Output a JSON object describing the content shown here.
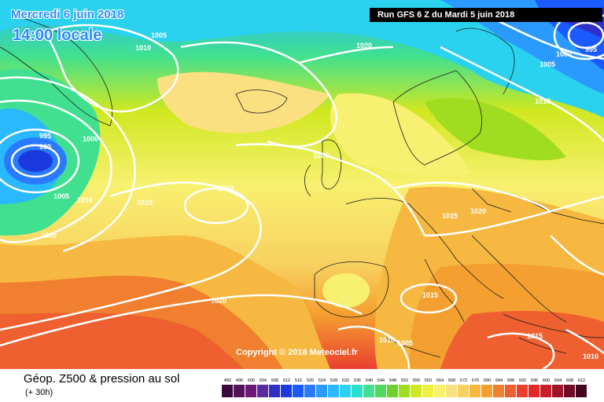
{
  "header": {
    "date": "Mercredi 6 juin 2018",
    "time": "14:00 locale",
    "run": "Run GFS 6 Z du Mardi 5 juin 2018"
  },
  "copyright": "Copyright © 2018 Meteociel.fr",
  "legend": {
    "title": "Géop. Z500 & pression au sol",
    "subtitle": "(+ 30h)",
    "scale_values": [
      "492",
      "496",
      "500",
      "504",
      "508",
      "512",
      "516",
      "520",
      "524",
      "528",
      "532",
      "536",
      "540",
      "544",
      "548",
      "552",
      "556",
      "560",
      "564",
      "568",
      "572",
      "576",
      "580",
      "584",
      "588",
      "592",
      "596",
      "600",
      "604",
      "608",
      "612"
    ],
    "scale_colors": [
      "#3a0a3e",
      "#55125a",
      "#6c1a78",
      "#5a2aa0",
      "#3030c8",
      "#1a3ae0",
      "#1a5aff",
      "#2a7aff",
      "#2a9aff",
      "#2ab8ff",
      "#2ad2f0",
      "#2ae0c8",
      "#40e090",
      "#50d860",
      "#70d030",
      "#a0dc20",
      "#d0e820",
      "#eef040",
      "#f8f070",
      "#fae080",
      "#f8d060",
      "#f6b840",
      "#f4a030",
      "#f08030",
      "#ee6030",
      "#ea4030",
      "#e22a2a",
      "#c81e2a",
      "#a0142a",
      "#700c28",
      "#400820"
    ]
  },
  "isobar_labels": [
    "1005",
    "1010",
    "995",
    "990",
    "1000",
    "1005",
    "1010",
    "1015",
    "1010",
    "1000",
    "1020",
    "1020",
    "1015",
    "1020",
    "1015",
    "1020",
    "1010",
    "1005",
    "1015",
    "1010",
    "1000",
    "995",
    "1005",
    "1010"
  ]
}
